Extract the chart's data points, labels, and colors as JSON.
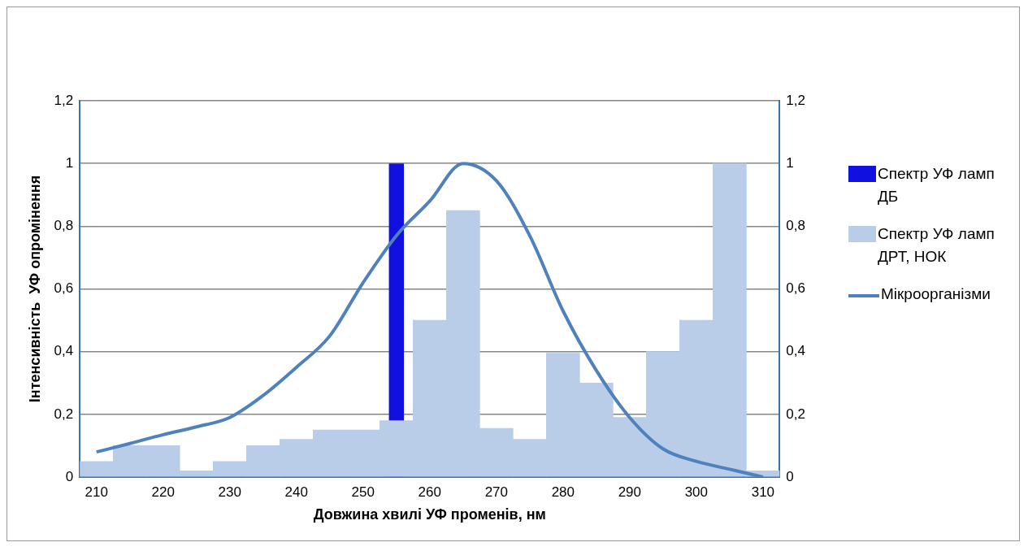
{
  "chart_data": {
    "type": "bar",
    "xlabel": "Довжина хвилі УФ променів, нм",
    "ylabel": "Інтенсивність  УФ опромінення",
    "categories": [
      "210",
      null,
      "220",
      null,
      "230",
      null,
      "240",
      null,
      "250",
      null,
      "260",
      null,
      "270",
      null,
      "280",
      null,
      "290",
      null,
      "300",
      null,
      "310"
    ],
    "series": [
      {
        "name": "Спектр УФ ламп ДБ",
        "color": "#1010e0",
        "values": [
          null,
          null,
          null,
          null,
          null,
          null,
          null,
          null,
          null,
          1,
          null,
          null,
          null,
          null,
          null,
          null,
          null,
          null,
          null,
          null,
          null
        ]
      },
      {
        "name": "Спектр УФ ламп ДРТ, НОК",
        "color": "#b9cde9",
        "values": [
          0.05,
          0.1,
          0.1,
          0.02,
          0.05,
          0.1,
          0.12,
          0.15,
          0.15,
          0.18,
          0.5,
          0.85,
          0.155,
          0.12,
          0.395,
          0.3,
          0.19,
          0.4,
          0.5,
          1,
          0.02
        ]
      },
      {
        "name": "Мікроорганізми",
        "type": "line",
        "axis": "y2",
        "color": "#4f81bd",
        "values": [
          0.08,
          0.107,
          0.135,
          0.16,
          0.19,
          0.26,
          0.35,
          0.45,
          0.62,
          0.77,
          0.88,
          1,
          0.945,
          0.77,
          0.53,
          0.34,
          0.19,
          0.09,
          0.05,
          0.025,
          0
        ]
      }
    ],
    "ylim": [
      0,
      1.2
    ],
    "yticks": [
      0,
      {
        "value": 0.2,
        "label": "0,2"
      },
      {
        "value": 0.4,
        "label": "0,4"
      },
      {
        "value": 0.6,
        "label": "0,6"
      },
      {
        "value": 0.8,
        "label": "0,8"
      },
      1,
      {
        "value": 1.2,
        "label": "1,2"
      }
    ],
    "y2lim": [
      0,
      1.2
    ],
    "y2ticks": [
      0,
      {
        "value": 0.2,
        "label": "0,2"
      },
      {
        "value": 0.4,
        "label": "0,4"
      },
      {
        "value": 0.6,
        "label": "0,6"
      },
      {
        "value": 0.8,
        "label": "0,8"
      },
      1,
      {
        "value": 1.2,
        "label": "1,2"
      }
    ],
    "grid": "y",
    "legend": "right"
  }
}
